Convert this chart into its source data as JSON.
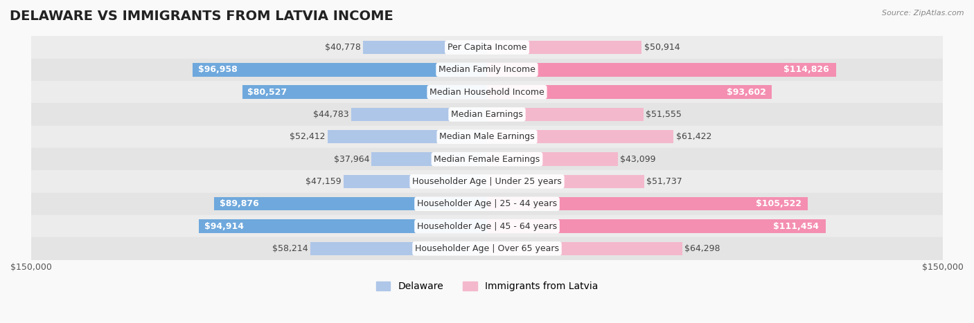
{
  "title": "DELAWARE VS IMMIGRANTS FROM LATVIA INCOME",
  "source": "Source: ZipAtlas.com",
  "categories": [
    "Per Capita Income",
    "Median Family Income",
    "Median Household Income",
    "Median Earnings",
    "Median Male Earnings",
    "Median Female Earnings",
    "Householder Age | Under 25 years",
    "Householder Age | 25 - 44 years",
    "Householder Age | 45 - 64 years",
    "Householder Age | Over 65 years"
  ],
  "delaware_values": [
    40778,
    96958,
    80527,
    44783,
    52412,
    37964,
    47159,
    89876,
    94914,
    58214
  ],
  "latvia_values": [
    50914,
    114826,
    93602,
    51555,
    61422,
    43099,
    51737,
    105522,
    111454,
    64298
  ],
  "max_value": 150000,
  "delaware_color_strong": "#6fa8dc",
  "delaware_color_light": "#aec6e8",
  "latvia_color_strong": "#f48fb1",
  "latvia_color_light": "#f4b8cc",
  "background_color": "#f5f5f5",
  "row_background": "#ececec",
  "label_box_color": "#ffffff",
  "title_fontsize": 14,
  "value_fontsize": 9,
  "category_fontsize": 9,
  "legend_fontsize": 10,
  "axis_label_fontsize": 9,
  "strong_threshold": 80000
}
